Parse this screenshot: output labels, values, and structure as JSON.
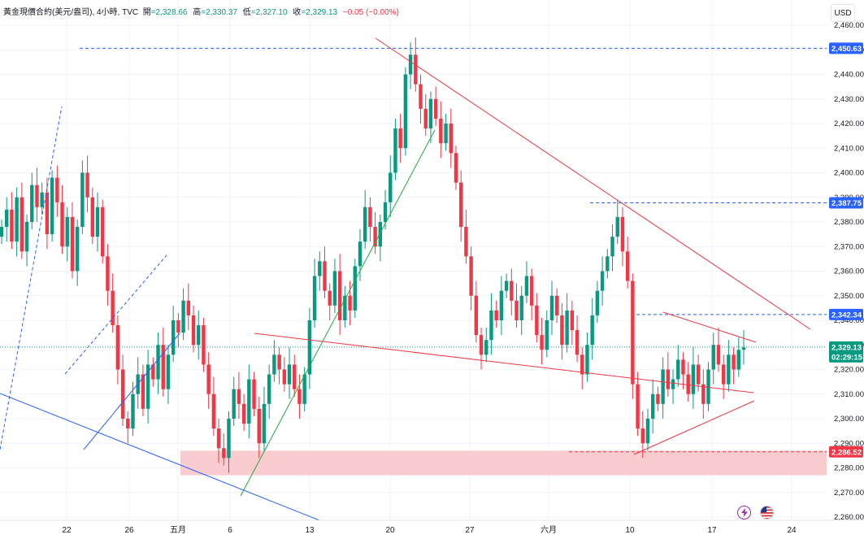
{
  "legend": {
    "symbol": "黃金現價合約(美元/盎司), 4小時, TVC",
    "open_label": "開",
    "open": "=2,328.66",
    "high_label": "高",
    "high": "=2,330.37",
    "low_label": "低",
    "low": "=2,327.10",
    "close_label": "收",
    "close": "=2,329.13",
    "change": "−0.05 (−0.00%)"
  },
  "currency": "USD",
  "colors": {
    "up": "#089981",
    "down": "#f23645",
    "level_line": "#2962ff",
    "resistance": "#f23645",
    "support_blue": "#2962ff",
    "trend_green": "#22ab3d",
    "zone": "#f8c7cb"
  },
  "chart_data": {
    "type": "candlestick",
    "title": "黃金現價合約(美元/盎司), 4小時, TVC",
    "ylabel": "USD",
    "ylim": [
      2257,
      2463
    ],
    "y_ticks": [
      "2,260.00",
      "2,270.00",
      "2,280.00",
      "2,290.00",
      "2,300.00",
      "2,310.00",
      "2,320.00",
      "2,330.00",
      "2,340.00",
      "2,350.00",
      "2,360.00",
      "2,370.00",
      "2,380.00",
      "2,390.00",
      "2,400.00",
      "2,410.00",
      "2,420.00",
      "2,430.00",
      "2,440.00",
      "2,450.00",
      "2,460.00"
    ],
    "x_ticks": [
      "22",
      "26",
      "五月",
      "6",
      "13",
      "20",
      "27",
      "六月",
      "10",
      "17",
      "24"
    ],
    "price_levels": [
      {
        "label": "2,450.63",
        "value": 2450.63,
        "color": "#2962ff"
      },
      {
        "label": "2,387.75",
        "value": 2387.75,
        "color": "#2962ff"
      },
      {
        "label": "2,342.34",
        "value": 2342.34,
        "color": "#2962ff"
      },
      {
        "label": "2,286.52",
        "value": 2286.52,
        "color": "#f23645"
      }
    ],
    "last_price": {
      "label": "2,329.13",
      "value": 2329.13,
      "countdown": "02:29:15",
      "color": "#089981"
    },
    "zone": {
      "from": 2277,
      "to": 2287,
      "color": "#f8c7cb"
    },
    "series_close_approx": [
      2378,
      2385,
      2372,
      2390,
      2368,
      2380,
      2395,
      2386,
      2392,
      2375,
      2398,
      2388,
      2370,
      2382,
      2360,
      2378,
      2400,
      2390,
      2374,
      2386,
      2366,
      2352,
      2338,
      2320,
      2300,
      2296,
      2310,
      2318,
      2304,
      2322,
      2316,
      2330,
      2312,
      2326,
      2340,
      2335,
      2348,
      2342,
      2330,
      2338,
      2322,
      2310,
      2296,
      2288,
      2284,
      2300,
      2312,
      2306,
      2298,
      2316,
      2304,
      2290,
      2306,
      2318,
      2326,
      2320,
      2314,
      2322,
      2312,
      2306,
      2318,
      2340,
      2358,
      2364,
      2352,
      2346,
      2360,
      2340,
      2350,
      2344,
      2362,
      2372,
      2386,
      2378,
      2370,
      2380,
      2388,
      2400,
      2418,
      2410,
      2440,
      2448,
      2436,
      2426,
      2418,
      2430,
      2422,
      2412,
      2420,
      2408,
      2396,
      2378,
      2366,
      2350,
      2334,
      2326,
      2332,
      2344,
      2340,
      2352,
      2356,
      2348,
      2340,
      2350,
      2358,
      2346,
      2334,
      2328,
      2340,
      2350,
      2342,
      2330,
      2344,
      2336,
      2326,
      2318,
      2330,
      2342,
      2352,
      2360,
      2366,
      2374,
      2382,
      2368,
      2356,
      2314,
      2296,
      2290,
      2300,
      2310,
      2306,
      2320,
      2312,
      2316,
      2324,
      2318,
      2310,
      2322,
      2314,
      2306,
      2320,
      2330,
      2322,
      2314,
      2326,
      2320,
      2328,
      2329
    ]
  },
  "icons": {
    "flash": "lightning-icon",
    "flag": "us-flag-icon"
  }
}
